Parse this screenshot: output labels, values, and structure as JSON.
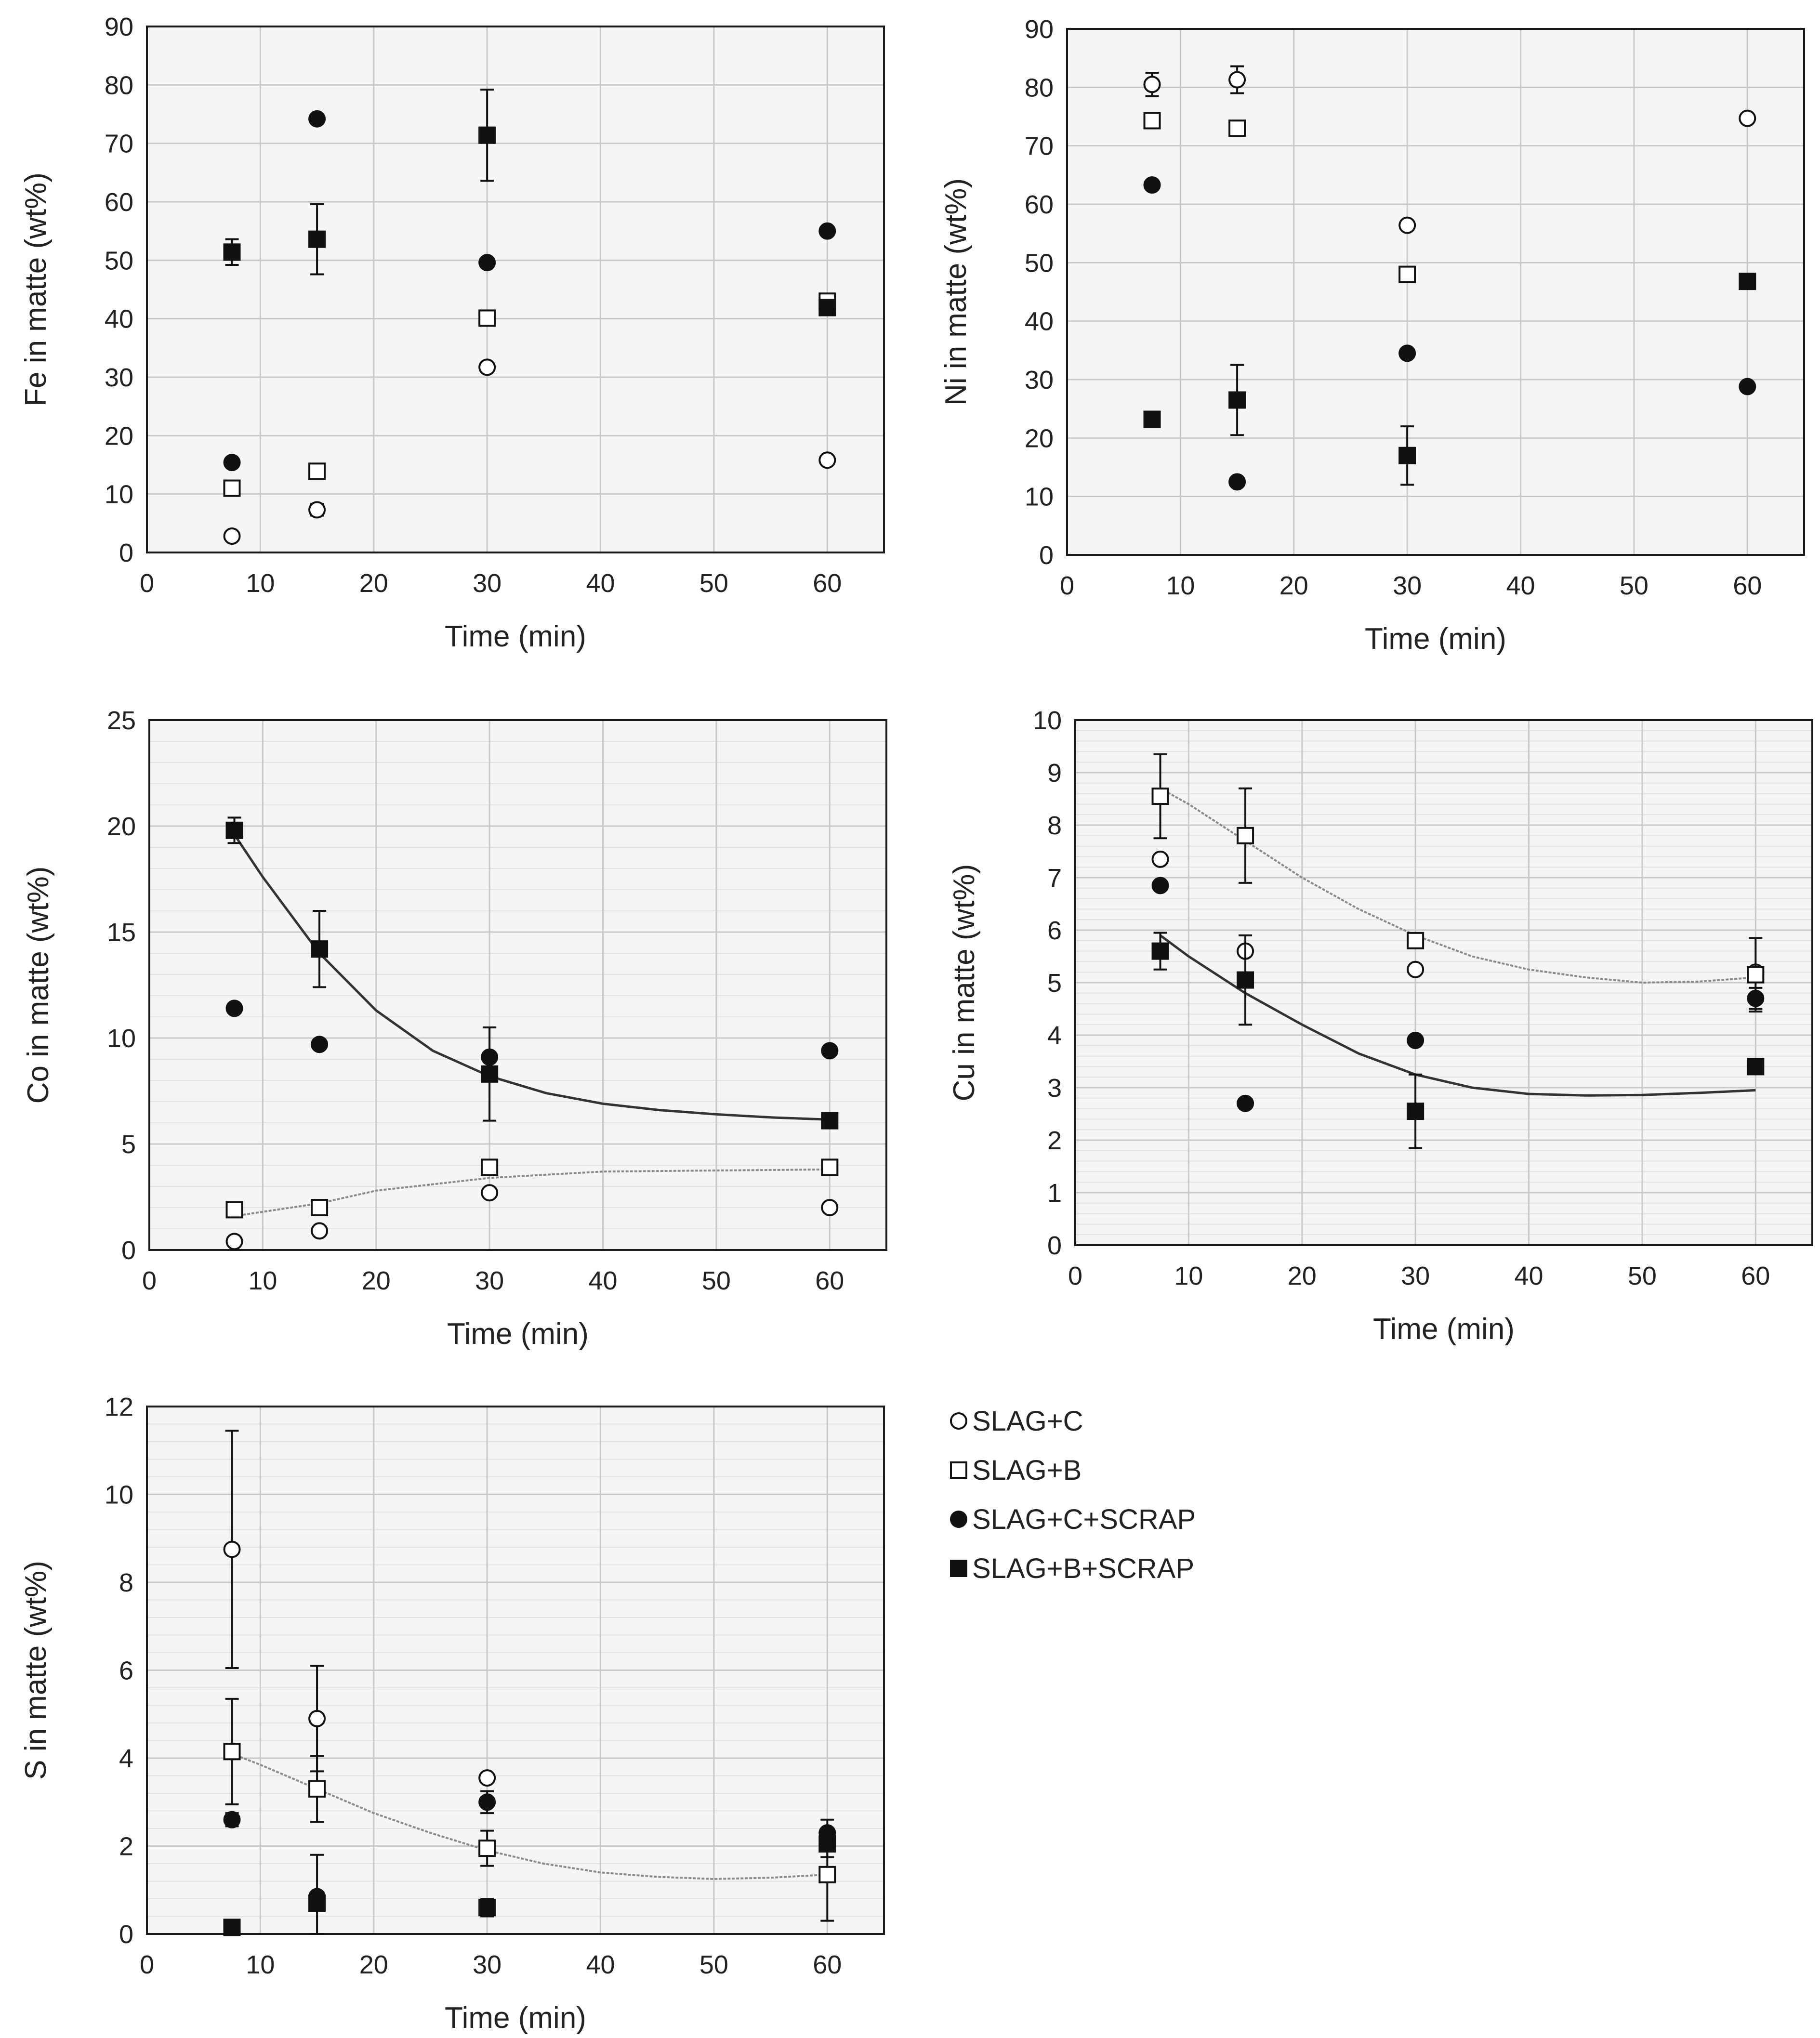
{
  "legend": [
    {
      "series": "sc",
      "label": "SLAG+C",
      "marker": "circle-open"
    },
    {
      "series": "sb",
      "label": "SLAG+B",
      "marker": "square-open"
    },
    {
      "series": "scs",
      "label": "SLAG+C+SCRAP",
      "marker": "circle-filled"
    },
    {
      "series": "sbs",
      "label": "SLAG+B+SCRAP",
      "marker": "square-filled"
    }
  ],
  "colors": {
    "marker": "#111111",
    "plot_bg": "#f5f5f5",
    "grid": "#c9c9c9",
    "trend_dark": "#333333",
    "trend_light": "#8a8a8a"
  },
  "chart_data": [
    {
      "id": "fe",
      "type": "scatter",
      "xlabel": "Time (min)",
      "ylabel": "Fe in matte (wt%)",
      "xlim": [
        0,
        65
      ],
      "ylim": [
        0,
        90
      ],
      "xticks": [
        0,
        10,
        20,
        30,
        40,
        50,
        60
      ],
      "yticks": [
        0,
        10,
        20,
        30,
        40,
        50,
        60,
        70,
        80,
        90
      ],
      "xtick_labels": [
        "0",
        "10",
        "20",
        "30",
        "40",
        "50",
        "60"
      ],
      "ytick_labels": [
        "0",
        "10",
        "20",
        "30",
        "40",
        "50",
        "60",
        "70",
        "80",
        "90"
      ],
      "minor_grid": false,
      "series": [
        {
          "name": "SLAG+C",
          "key": "sc",
          "marker": "circle-open",
          "x": [
            7.5,
            15,
            30,
            60
          ],
          "y": [
            2.8,
            7.3,
            31.7,
            15.8
          ],
          "err": [
            0,
            1.0,
            0,
            0
          ]
        },
        {
          "name": "SLAG+B",
          "key": "sb",
          "marker": "square-open",
          "x": [
            7.5,
            15,
            30,
            60
          ],
          "y": [
            11.0,
            13.9,
            40.1,
            43.0
          ],
          "err": [
            0,
            0,
            0,
            0
          ]
        },
        {
          "name": "SLAG+C+SCRAP",
          "key": "scs",
          "marker": "circle-filled",
          "x": [
            7.5,
            15,
            30,
            60
          ],
          "y": [
            15.4,
            74.2,
            49.6,
            55.0
          ],
          "err": [
            0,
            0,
            0,
            0
          ]
        },
        {
          "name": "SLAG+B+SCRAP",
          "key": "sbs",
          "marker": "square-filled",
          "x": [
            7.5,
            15,
            30,
            60
          ],
          "y": [
            51.4,
            53.6,
            71.4,
            41.9
          ],
          "err": [
            2.2,
            6.0,
            7.8,
            0
          ]
        }
      ],
      "trendlines": []
    },
    {
      "id": "ni",
      "type": "scatter",
      "xlabel": "Time (min)",
      "ylabel": "Ni in matte (wt%)",
      "xlim": [
        0,
        65
      ],
      "ylim": [
        0,
        90
      ],
      "xticks": [
        0,
        10,
        20,
        30,
        40,
        50,
        60
      ],
      "yticks": [
        0,
        10,
        20,
        30,
        40,
        50,
        60,
        70,
        80,
        90
      ],
      "xtick_labels": [
        "0",
        "10",
        "20",
        "30",
        "40",
        "50",
        "60"
      ],
      "ytick_labels": [
        "0",
        "10",
        "20",
        "30",
        "40",
        "50",
        "60",
        "70",
        "80",
        "90"
      ],
      "minor_grid": false,
      "series": [
        {
          "name": "SLAG+C",
          "key": "sc",
          "marker": "circle-open",
          "x": [
            7.5,
            15,
            30,
            60
          ],
          "y": [
            80.5,
            81.3,
            56.4,
            74.7
          ],
          "err": [
            2.0,
            2.3,
            0,
            0
          ]
        },
        {
          "name": "SLAG+B",
          "key": "sb",
          "marker": "square-open",
          "x": [
            7.5,
            15,
            30,
            60
          ],
          "y": [
            74.3,
            73.0,
            48.0,
            0
          ],
          "err": [
            0,
            0,
            0,
            0
          ],
          "hide": [
            false,
            false,
            false,
            true
          ]
        },
        {
          "name": "SLAG+C+SCRAP",
          "key": "scs",
          "marker": "circle-filled",
          "x": [
            7.5,
            15,
            30,
            60
          ],
          "y": [
            63.3,
            12.5,
            34.5,
            28.8
          ],
          "err": [
            0,
            0,
            0,
            0
          ]
        },
        {
          "name": "SLAG+B+SCRAP",
          "key": "sbs",
          "marker": "square-filled",
          "x": [
            7.5,
            15,
            30,
            60
          ],
          "y": [
            23.2,
            26.5,
            17.0,
            46.8
          ],
          "err": [
            0,
            6.0,
            5.0,
            0
          ]
        }
      ],
      "trendlines": []
    },
    {
      "id": "co",
      "type": "scatter",
      "xlabel": "Time (min)",
      "ylabel": "Co in matte (wt%)",
      "xlim": [
        0,
        65
      ],
      "ylim": [
        0,
        25
      ],
      "xticks": [
        0,
        10,
        20,
        30,
        40,
        50,
        60
      ],
      "yticks": [
        0,
        5,
        10,
        15,
        20,
        25
      ],
      "xtick_labels": [
        "0",
        "10",
        "20",
        "30",
        "40",
        "50",
        "60"
      ],
      "ytick_labels": [
        "0",
        "5",
        "10",
        "15",
        "20",
        "25"
      ],
      "minor_grid": true,
      "series": [
        {
          "name": "SLAG+C",
          "key": "sc",
          "marker": "circle-open",
          "x": [
            7.5,
            15,
            30,
            60
          ],
          "y": [
            0.4,
            0.9,
            2.7,
            2.0
          ],
          "err": [
            0,
            0,
            0,
            0
          ]
        },
        {
          "name": "SLAG+B",
          "key": "sb",
          "marker": "square-open",
          "x": [
            7.5,
            15,
            30,
            60
          ],
          "y": [
            1.9,
            2.0,
            3.9,
            3.9
          ],
          "err": [
            0,
            0,
            0,
            0
          ]
        },
        {
          "name": "SLAG+C+SCRAP",
          "key": "scs",
          "marker": "circle-filled",
          "x": [
            7.5,
            15,
            30,
            60
          ],
          "y": [
            11.4,
            9.7,
            9.1,
            9.4
          ],
          "err": [
            0,
            0,
            0,
            0
          ]
        },
        {
          "name": "SLAG+B+SCRAP",
          "key": "sbs",
          "marker": "square-filled",
          "x": [
            7.5,
            15,
            30,
            60
          ],
          "y": [
            19.8,
            14.2,
            8.3,
            6.1
          ],
          "err": [
            0.6,
            1.8,
            2.2,
            0
          ]
        }
      ],
      "trendlines": [
        {
          "style": "dark",
          "x": [
            7.5,
            10,
            15,
            20,
            25,
            30,
            35,
            40,
            45,
            50,
            55,
            60
          ],
          "y": [
            19.6,
            17.6,
            14.0,
            11.3,
            9.4,
            8.2,
            7.4,
            6.9,
            6.6,
            6.4,
            6.25,
            6.15
          ]
        },
        {
          "style": "light",
          "x": [
            7.5,
            15,
            20,
            30,
            40,
            50,
            60
          ],
          "y": [
            1.6,
            2.2,
            2.8,
            3.4,
            3.7,
            3.75,
            3.8
          ]
        }
      ]
    },
    {
      "id": "cu",
      "type": "scatter",
      "xlabel": "Time (min)",
      "ylabel": "Cu in matte (wt%)",
      "xlim": [
        0,
        65
      ],
      "ylim": [
        0,
        10
      ],
      "xticks": [
        0,
        10,
        20,
        30,
        40,
        50,
        60
      ],
      "yticks": [
        0,
        1,
        2,
        3,
        4,
        5,
        6,
        7,
        8,
        9,
        10
      ],
      "xtick_labels": [
        "0",
        "10",
        "20",
        "30",
        "40",
        "50",
        "60"
      ],
      "ytick_labels": [
        "0",
        "1",
        "2",
        "3",
        "4",
        "5",
        "6",
        "7",
        "8",
        "9",
        "10"
      ],
      "minor_grid": true,
      "series": [
        {
          "name": "SLAG+C",
          "key": "sc",
          "marker": "circle-open",
          "x": [
            7.5,
            15,
            30,
            60
          ],
          "y": [
            7.35,
            5.6,
            5.25,
            5.2
          ],
          "err": [
            0,
            0,
            0,
            0
          ]
        },
        {
          "name": "SLAG+B",
          "key": "sb",
          "marker": "square-open",
          "x": [
            7.5,
            15,
            30,
            60
          ],
          "y": [
            8.55,
            7.8,
            5.8,
            5.15
          ],
          "err": [
            0.8,
            0.9,
            0,
            0.7
          ]
        },
        {
          "name": "SLAG+C+SCRAP",
          "key": "scs",
          "marker": "circle-filled",
          "x": [
            7.5,
            15,
            30,
            60
          ],
          "y": [
            6.85,
            2.7,
            3.9,
            4.7
          ],
          "err": [
            0,
            0,
            0,
            0.2
          ]
        },
        {
          "name": "SLAG+B+SCRAP",
          "key": "sbs",
          "marker": "square-filled",
          "x": [
            7.5,
            15,
            30,
            60
          ],
          "y": [
            5.6,
            5.05,
            2.55,
            3.4
          ],
          "err": [
            0.35,
            0.85,
            0.7,
            0
          ]
        }
      ],
      "trendlines": [
        {
          "style": "light",
          "x": [
            7.5,
            10,
            15,
            20,
            25,
            30,
            35,
            40,
            45,
            50,
            55,
            60
          ],
          "y": [
            8.7,
            8.4,
            7.7,
            7.0,
            6.4,
            5.9,
            5.5,
            5.25,
            5.1,
            5.0,
            5.02,
            5.1
          ]
        },
        {
          "style": "dark",
          "x": [
            7.5,
            10,
            15,
            20,
            25,
            30,
            35,
            40,
            45,
            50,
            55,
            60
          ],
          "y": [
            5.9,
            5.5,
            4.8,
            4.2,
            3.65,
            3.25,
            3.0,
            2.88,
            2.85,
            2.86,
            2.9,
            2.95
          ]
        }
      ]
    },
    {
      "id": "s",
      "type": "scatter",
      "xlabel": "Time (min)",
      "ylabel": "S in matte (wt%)",
      "xlim": [
        0,
        65
      ],
      "ylim": [
        0,
        12
      ],
      "xticks": [
        0,
        10,
        20,
        30,
        40,
        50,
        60
      ],
      "yticks": [
        0,
        2,
        4,
        6,
        8,
        10,
        12
      ],
      "xtick_labels": [
        "0",
        "10",
        "20",
        "30",
        "40",
        "50",
        "60"
      ],
      "ytick_labels": [
        "0",
        "2",
        "4",
        "6",
        "8",
        "10",
        "12"
      ],
      "minor_grid": true,
      "series": [
        {
          "name": "SLAG+C",
          "key": "sc",
          "marker": "circle-open",
          "x": [
            7.5,
            15,
            30,
            60
          ],
          "y": [
            8.75,
            4.9,
            3.55,
            0
          ],
          "err": [
            2.7,
            1.2,
            0,
            0
          ],
          "hide": [
            false,
            false,
            false,
            true
          ]
        },
        {
          "name": "SLAG+B",
          "key": "sb",
          "marker": "square-open",
          "x": [
            7.5,
            15,
            30,
            60
          ],
          "y": [
            4.15,
            3.3,
            1.95,
            1.35
          ],
          "err": [
            1.2,
            0.75,
            0.4,
            1.05
          ]
        },
        {
          "name": "SLAG+C+SCRAP",
          "key": "scs",
          "marker": "circle-filled",
          "x": [
            7.5,
            15,
            30,
            60
          ],
          "y": [
            2.6,
            0.85,
            3.0,
            2.3
          ],
          "err": [
            0.15,
            0,
            0.25,
            0.3
          ]
        },
        {
          "name": "SLAG+B+SCRAP",
          "key": "sbs",
          "marker": "square-filled",
          "x": [
            7.5,
            15,
            30,
            60
          ],
          "y": [
            0.15,
            0.7,
            0.6,
            2.05
          ],
          "err": [
            0,
            1.1,
            0.2,
            0.3
          ]
        }
      ],
      "trendlines": [
        {
          "style": "light",
          "x": [
            7.5,
            10,
            15,
            20,
            25,
            30,
            35,
            40,
            45,
            50,
            55,
            60
          ],
          "y": [
            4.1,
            3.85,
            3.3,
            2.75,
            2.3,
            1.9,
            1.6,
            1.4,
            1.3,
            1.25,
            1.28,
            1.35
          ]
        }
      ]
    }
  ]
}
